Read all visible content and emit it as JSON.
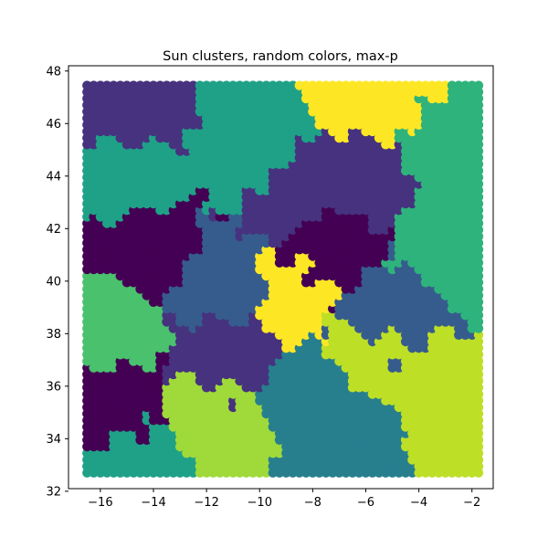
{
  "chart_data": {
    "type": "scatter",
    "title": "Sun clusters, random colors, max-p",
    "xlabel": "",
    "ylabel": "",
    "xlim": [
      -17.2,
      -1.2
    ],
    "ylim": [
      32.1,
      48.2
    ],
    "xticks": [
      -16,
      -14,
      -12,
      -10,
      -8,
      -6,
      -4,
      -2
    ],
    "yticks": [
      32,
      34,
      36,
      38,
      40,
      42,
      44,
      46,
      48
    ],
    "xtick_labels": [
      "−16",
      "−14",
      "−12",
      "−10",
      "−8",
      "−6",
      "−4",
      "−2"
    ],
    "ytick_labels": [
      "32",
      "34",
      "36",
      "38",
      "40",
      "42",
      "44",
      "46",
      "48"
    ],
    "grid": false,
    "point_spacing": 0.25,
    "x_start": -16.5,
    "x_count": 60,
    "y_start": 32.7,
    "y_count": 60,
    "cluster_colors": {
      "A": "#440154",
      "B": "#46327e",
      "C": "#365c8d",
      "D": "#277f8e",
      "E": "#1fa187",
      "F": "#2eb37c",
      "G": "#4ac16d",
      "H": "#9fda3a",
      "I": "#bddf26",
      "J": "#fde725"
    },
    "cluster_seeds": [
      {
        "cluster": "A",
        "x": -15.1,
        "y": 35.1
      },
      {
        "cluster": "A",
        "x": -14.3,
        "y": 41.2
      },
      {
        "cluster": "A",
        "x": -7.3,
        "y": 41.0
      },
      {
        "cluster": "B",
        "x": -15.0,
        "y": 46.6
      },
      {
        "cluster": "B",
        "x": -8.6,
        "y": 43.4
      },
      {
        "cluster": "B",
        "x": -5.8,
        "y": 44.2
      },
      {
        "cluster": "B",
        "x": -11.3,
        "y": 37.3
      },
      {
        "cluster": "C",
        "x": -11.4,
        "y": 39.8
      },
      {
        "cluster": "C",
        "x": -5.6,
        "y": 38.8
      },
      {
        "cluster": "D",
        "x": -8.0,
        "y": 36.0
      },
      {
        "cluster": "D",
        "x": -6.0,
        "y": 33.4
      },
      {
        "cluster": "E",
        "x": -15.2,
        "y": 44.0
      },
      {
        "cluster": "E",
        "x": -10.2,
        "y": 45.0
      },
      {
        "cluster": "E",
        "x": -14.5,
        "y": 33.4
      },
      {
        "cluster": "F",
        "x": -3.0,
        "y": 41.8
      },
      {
        "cluster": "F",
        "x": -3.2,
        "y": 45.0
      },
      {
        "cluster": "G",
        "x": -15.6,
        "y": 38.4
      },
      {
        "cluster": "H",
        "x": -12.0,
        "y": 34.8
      },
      {
        "cluster": "I",
        "x": -3.2,
        "y": 35.0
      },
      {
        "cluster": "I",
        "x": -6.2,
        "y": 37.4
      },
      {
        "cluster": "J",
        "x": -8.5,
        "y": 39.4
      },
      {
        "cluster": "J",
        "x": -5.4,
        "y": 46.8
      }
    ]
  }
}
